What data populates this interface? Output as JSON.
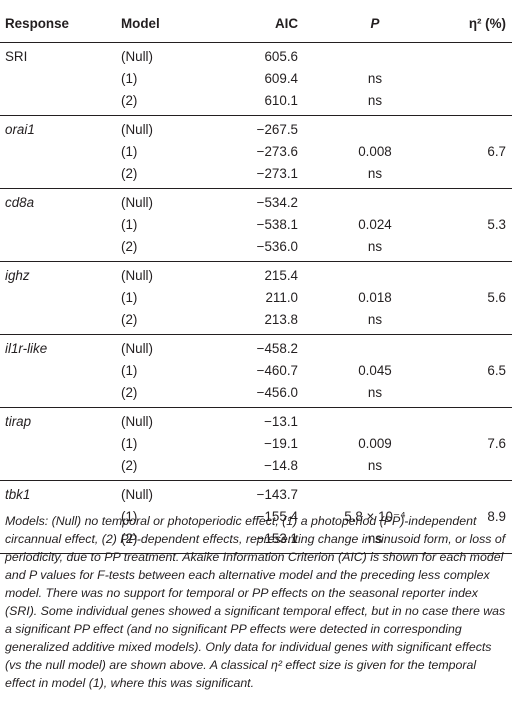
{
  "headers": {
    "response": "Response",
    "model": "Model",
    "aic": "AIC",
    "p": "P",
    "eta": "η² (%)"
  },
  "groups": [
    {
      "response": "SRI",
      "italic": false,
      "rows": [
        {
          "model": "(Null)",
          "aic": "605.6",
          "p": "",
          "eta": ""
        },
        {
          "model": "(1)",
          "aic": "609.4",
          "p": "ns",
          "eta": ""
        },
        {
          "model": "(2)",
          "aic": "610.1",
          "p": "ns",
          "eta": ""
        }
      ]
    },
    {
      "response": "orai1",
      "italic": true,
      "rows": [
        {
          "model": "(Null)",
          "aic": "−267.5",
          "p": "",
          "eta": ""
        },
        {
          "model": "(1)",
          "aic": "−273.6",
          "p": "0.008",
          "eta": "6.7"
        },
        {
          "model": "(2)",
          "aic": "−273.1",
          "p": "ns",
          "eta": ""
        }
      ]
    },
    {
      "response": "cd8a",
      "italic": true,
      "rows": [
        {
          "model": "(Null)",
          "aic": "−534.2",
          "p": "",
          "eta": ""
        },
        {
          "model": "(1)",
          "aic": "−538.1",
          "p": "0.024",
          "eta": "5.3"
        },
        {
          "model": "(2)",
          "aic": "−536.0",
          "p": "ns",
          "eta": ""
        }
      ]
    },
    {
      "response": "ighz",
      "italic": true,
      "rows": [
        {
          "model": "(Null)",
          "aic": "215.4",
          "p": "",
          "eta": ""
        },
        {
          "model": "(1)",
          "aic": "211.0",
          "p": "0.018",
          "eta": "5.6"
        },
        {
          "model": "(2)",
          "aic": "213.8",
          "p": "ns",
          "eta": ""
        }
      ]
    },
    {
      "response": "il1r-like",
      "italic": true,
      "rows": [
        {
          "model": "(Null)",
          "aic": "−458.2",
          "p": "",
          "eta": ""
        },
        {
          "model": "(1)",
          "aic": "−460.7",
          "p": "0.045",
          "eta": "6.5"
        },
        {
          "model": "(2)",
          "aic": "−456.0",
          "p": "ns",
          "eta": ""
        }
      ]
    },
    {
      "response": "tirap",
      "italic": true,
      "rows": [
        {
          "model": "(Null)",
          "aic": "−13.1",
          "p": "",
          "eta": ""
        },
        {
          "model": "(1)",
          "aic": "−19.1",
          "p": "0.009",
          "eta": "7.6"
        },
        {
          "model": "(2)",
          "aic": "−14.8",
          "p": "ns",
          "eta": ""
        }
      ]
    },
    {
      "response": "tbk1",
      "italic": true,
      "rows": [
        {
          "model": "(Null)",
          "aic": "−143.7",
          "p": "",
          "eta": ""
        },
        {
          "model": "(1)",
          "aic": "−155.4",
          "p": "5.8 × 10⁻⁴",
          "eta": "8.9"
        },
        {
          "model": "(2)",
          "aic": "−153.1",
          "p": "ns",
          "eta": ""
        }
      ]
    }
  ],
  "caption": "Models: (Null) no temporal or photoperiodic effect, (1) a photoperiod (PP)-independent circannual effect, (2) PP-dependent effects, representing change in sinusoid form, or loss of periodicity, due to PP treatment. Akaike Information Criterion (AIC) is shown for each model and P values for F-tests between each alternative model and the preceding less complex model. There was no support for temporal or PP effects on the seasonal reporter index (SRI). Some individual genes showed a significant temporal effect, but in no case there was a significant PP effect (and no significant PP effects were detected in corresponding generalized additive mixed models). Only data for individual genes with significant effects (vs the null model) are shown above. A classical η² effect size is given for the temporal effect in model (1), where this was significant."
}
